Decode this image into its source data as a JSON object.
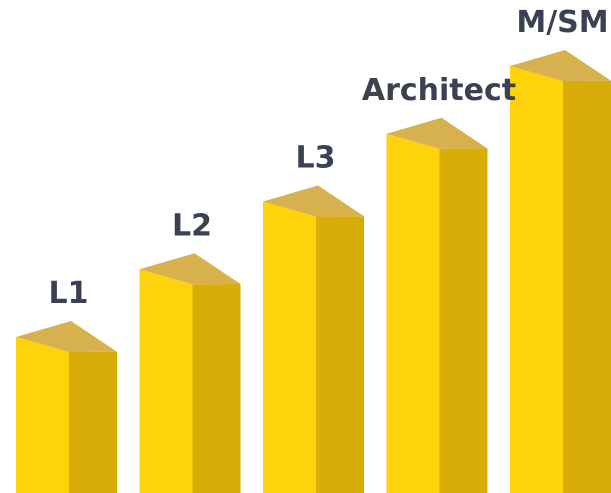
{
  "chart_data": {
    "type": "bar",
    "categories": [
      "L1",
      "L2",
      "L3",
      "Architect",
      "M/SM"
    ],
    "values": [
      1,
      2,
      3,
      4,
      5
    ],
    "title": "",
    "xlabel": "",
    "ylabel": "",
    "ylim": [
      0,
      5
    ],
    "grid": false,
    "legend": "none",
    "style": "3d-columns",
    "colors": {
      "front": "#FED30C",
      "side": "#D9AD08",
      "top": "#D6B14E",
      "label": "#3A4251"
    }
  }
}
